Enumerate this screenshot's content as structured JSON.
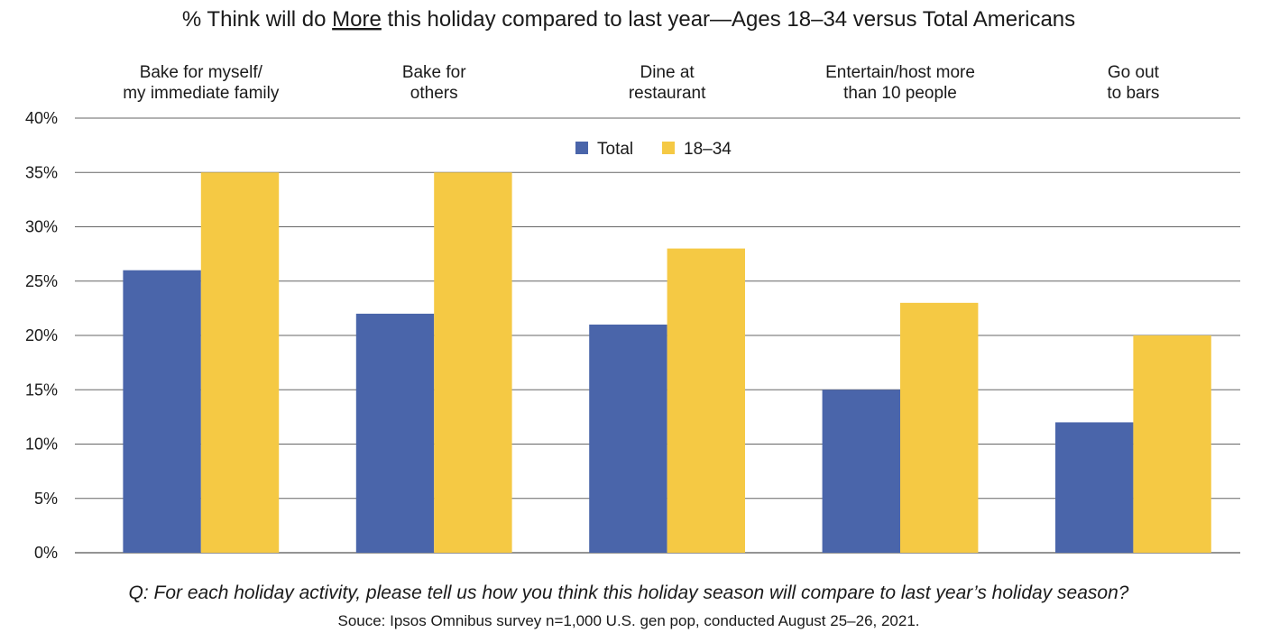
{
  "chart_data": {
    "type": "bar",
    "title_parts": [
      "% Think will do ",
      "More",
      " this holiday compared to last year—Ages 18–34 versus Total Americans"
    ],
    "categories": [
      [
        "Bake for myself/",
        "my immediate family"
      ],
      [
        "Bake for",
        "others"
      ],
      [
        "Dine at",
        "restaurant"
      ],
      [
        "Entertain/host more",
        "than 10 people"
      ],
      [
        "Go out",
        "to bars"
      ]
    ],
    "series": [
      {
        "name": "Total",
        "color": "#4a65aa",
        "values": [
          26,
          22,
          21,
          15,
          12
        ]
      },
      {
        "name": "18–34",
        "color": "#f5c944",
        "values": [
          35,
          35,
          28,
          23,
          20
        ]
      }
    ],
    "y_ticks": [
      "0%",
      "5%",
      "10%",
      "15%",
      "20%",
      "25%",
      "30%",
      "35%",
      "40%"
    ],
    "ylim": [
      0,
      40
    ],
    "grid": true,
    "legend_position": "top-center"
  },
  "footer": {
    "question": "Q: For each holiday activity, please tell us how you think this holiday season will compare to last year’s holiday season?",
    "source": "Souce: Ipsos Omnibus survey n=1,000 U.S. gen pop, conducted August 25–26, 2021."
  }
}
